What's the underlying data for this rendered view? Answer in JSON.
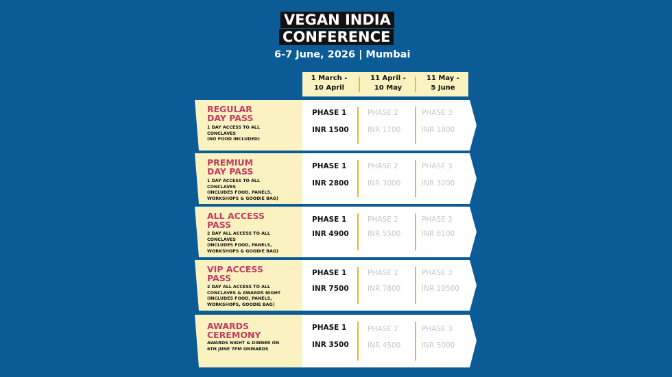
{
  "header": {
    "title_line1": "VEGAN INDIA",
    "title_line2": "CONFERENCE",
    "subtitle": "6-7 June, 2026 | Mumbai"
  },
  "phase_columns": [
    "1 March -\n10 April",
    "11 April -\n10 May",
    "11 May -\n5 June"
  ],
  "phase_labels": [
    "PHASE 1",
    "PHASE 2",
    "PHASE 3"
  ],
  "passes": [
    {
      "name": "REGULAR\nDAY PASS",
      "description": "1 DAY ACCESS TO ALL\nCONCLAVES\n(NO FOOD INCLUDED)",
      "prices": [
        "INR  1500",
        "INR  1700",
        "INR  1800"
      ]
    },
    {
      "name": "PREMIUM\nDAY PASS",
      "description": "1 DAY ACCESS TO ALL\nCONCLAVES\n(INCLUDES FOOD, PANELS,\nWORKSHOPS & GOODIE BAG)",
      "prices": [
        "INR  2800",
        "INR  3000",
        "INR  3200"
      ]
    },
    {
      "name": "ALL ACCESS\nPASS",
      "description": "2 DAY ALL ACCESS TO ALL\nCONCLAVES\n(INCLUDES FOOD, PANELS,\nWORKSHOPS & GOODIE BAG)",
      "prices": [
        "INR  4900",
        "INR  5500",
        "INR  6100"
      ]
    },
    {
      "name": "VIP ACCESS\nPASS",
      "description": "2 DAY ALL ACCESS TO ALL\nCONCLAVES & AWARDS NIGHT\n(INCLUDES FOOD, PANELS,\nWORKSHOPS, GOODIE BAG)",
      "prices": [
        "INR  7500",
        "INR  7800",
        "INR  10500"
      ]
    },
    {
      "name": "AWARDS\nCEREMONY",
      "description": "AWARDS NIGHT & DINNER ON\n6TH JUNE 7PM ONWARDS",
      "prices": [
        "INR  3500",
        "INR  4500",
        "INR  5000"
      ]
    }
  ],
  "colors": {
    "background": "#0b5b96",
    "label_panel": "#faf3c1",
    "pass_name": "#c33b5f",
    "divider": "#f0b829",
    "inactive_text": "#c6c6c6"
  }
}
